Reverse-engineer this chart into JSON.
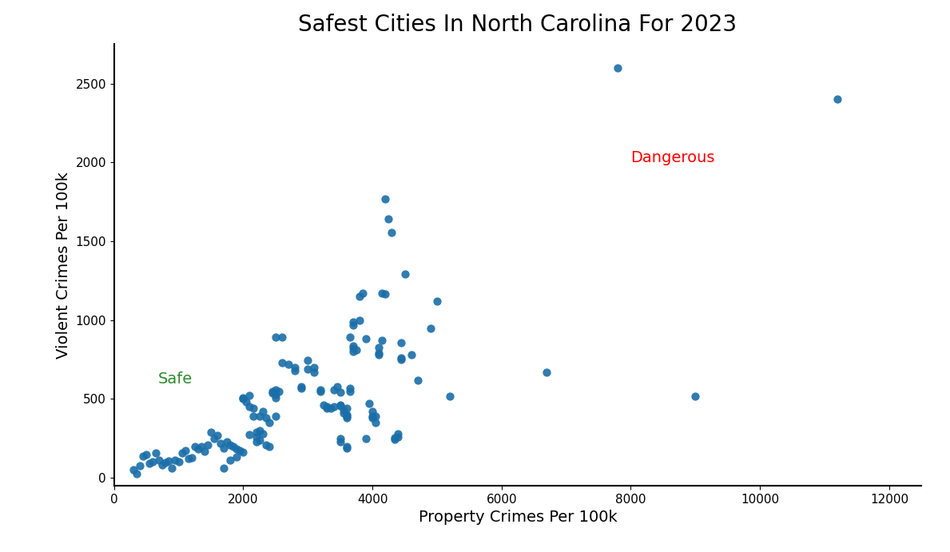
{
  "title": "Safest Cities In North Carolina For 2023",
  "xlabel": "Property Crimes Per 100k",
  "ylabel": "Violent Crimes Per 100k",
  "xlim": [
    0,
    12500
  ],
  "ylim": [
    -50,
    2750
  ],
  "dot_color": "#1a6ea8",
  "dot_size": 55,
  "safe_label": "Safe",
  "safe_color": "#2e8b2e",
  "safe_x": 680,
  "safe_y": 600,
  "dangerous_label": "Dangerous",
  "dangerous_color": "red",
  "dangerous_x": 8000,
  "dangerous_y": 2000,
  "xticks": [
    0,
    2000,
    4000,
    6000,
    8000,
    10000,
    12000
  ],
  "yticks": [
    0,
    500,
    1000,
    1500,
    2000,
    2500
  ],
  "points": [
    [
      300,
      50
    ],
    [
      350,
      25
    ],
    [
      400,
      75
    ],
    [
      450,
      140
    ],
    [
      500,
      150
    ],
    [
      550,
      90
    ],
    [
      600,
      100
    ],
    [
      650,
      160
    ],
    [
      700,
      110
    ],
    [
      750,
      80
    ],
    [
      800,
      95
    ],
    [
      850,
      105
    ],
    [
      900,
      60
    ],
    [
      950,
      115
    ],
    [
      1000,
      100
    ],
    [
      1050,
      160
    ],
    [
      1100,
      175
    ],
    [
      1150,
      125
    ],
    [
      1200,
      130
    ],
    [
      1250,
      200
    ],
    [
      1300,
      185
    ],
    [
      1350,
      200
    ],
    [
      1400,
      170
    ],
    [
      1450,
      210
    ],
    [
      1500,
      290
    ],
    [
      1550,
      250
    ],
    [
      1600,
      270
    ],
    [
      1650,
      220
    ],
    [
      1700,
      190
    ],
    [
      1750,
      230
    ],
    [
      1800,
      210
    ],
    [
      1850,
      200
    ],
    [
      1900,
      185
    ],
    [
      1950,
      175
    ],
    [
      2000,
      165
    ],
    [
      1700,
      60
    ],
    [
      1800,
      110
    ],
    [
      1900,
      135
    ],
    [
      2000,
      500
    ],
    [
      2000,
      510
    ],
    [
      2050,
      480
    ],
    [
      2100,
      450
    ],
    [
      2100,
      525
    ],
    [
      2100,
      275
    ],
    [
      2150,
      440
    ],
    [
      2150,
      390
    ],
    [
      2200,
      290
    ],
    [
      2200,
      230
    ],
    [
      2200,
      260
    ],
    [
      2250,
      240
    ],
    [
      2250,
      300
    ],
    [
      2250,
      390
    ],
    [
      2300,
      280
    ],
    [
      2300,
      420
    ],
    [
      2350,
      380
    ],
    [
      2350,
      210
    ],
    [
      2400,
      200
    ],
    [
      2400,
      350
    ],
    [
      2450,
      550
    ],
    [
      2450,
      540
    ],
    [
      2500,
      560
    ],
    [
      2500,
      530
    ],
    [
      2500,
      510
    ],
    [
      2500,
      390
    ],
    [
      2550,
      550
    ],
    [
      2500,
      890
    ],
    [
      2600,
      890
    ],
    [
      2700,
      720
    ],
    [
      2600,
      730
    ],
    [
      2800,
      700
    ],
    [
      2800,
      680
    ],
    [
      2900,
      580
    ],
    [
      2900,
      570
    ],
    [
      3000,
      745
    ],
    [
      3000,
      690
    ],
    [
      3100,
      700
    ],
    [
      3100,
      670
    ],
    [
      3200,
      560
    ],
    [
      3200,
      550
    ],
    [
      3250,
      460
    ],
    [
      3300,
      450
    ],
    [
      3300,
      440
    ],
    [
      3350,
      440
    ],
    [
      3400,
      450
    ],
    [
      3400,
      560
    ],
    [
      3450,
      580
    ],
    [
      3500,
      545
    ],
    [
      3500,
      460
    ],
    [
      3500,
      455
    ],
    [
      3500,
      250
    ],
    [
      3500,
      230
    ],
    [
      3550,
      430
    ],
    [
      3550,
      410
    ],
    [
      3600,
      440
    ],
    [
      3600,
      400
    ],
    [
      3600,
      390
    ],
    [
      3600,
      380
    ],
    [
      3600,
      200
    ],
    [
      3600,
      190
    ],
    [
      3650,
      570
    ],
    [
      3650,
      550
    ],
    [
      3650,
      895
    ],
    [
      3700,
      990
    ],
    [
      3700,
      970
    ],
    [
      3700,
      835
    ],
    [
      3700,
      800
    ],
    [
      3700,
      820
    ],
    [
      3750,
      810
    ],
    [
      3800,
      1000
    ],
    [
      3800,
      1150
    ],
    [
      3850,
      1170
    ],
    [
      3900,
      880
    ],
    [
      3900,
      250
    ],
    [
      3950,
      470
    ],
    [
      4000,
      380
    ],
    [
      4000,
      420
    ],
    [
      4000,
      390
    ],
    [
      4050,
      390
    ],
    [
      4050,
      350
    ],
    [
      4100,
      825
    ],
    [
      4100,
      790
    ],
    [
      4100,
      780
    ],
    [
      4150,
      870
    ],
    [
      4150,
      1170
    ],
    [
      4200,
      1165
    ],
    [
      4200,
      1770
    ],
    [
      4250,
      1640
    ],
    [
      4300,
      1555
    ],
    [
      4350,
      245
    ],
    [
      4350,
      255
    ],
    [
      4400,
      260
    ],
    [
      4400,
      280
    ],
    [
      4450,
      855
    ],
    [
      4450,
      760
    ],
    [
      4450,
      750
    ],
    [
      4500,
      1295
    ],
    [
      4600,
      780
    ],
    [
      4700,
      620
    ],
    [
      4900,
      950
    ],
    [
      5000,
      1120
    ],
    [
      5200,
      520
    ],
    [
      6700,
      670
    ],
    [
      7800,
      2600
    ],
    [
      9000,
      520
    ],
    [
      11200,
      2400
    ]
  ]
}
